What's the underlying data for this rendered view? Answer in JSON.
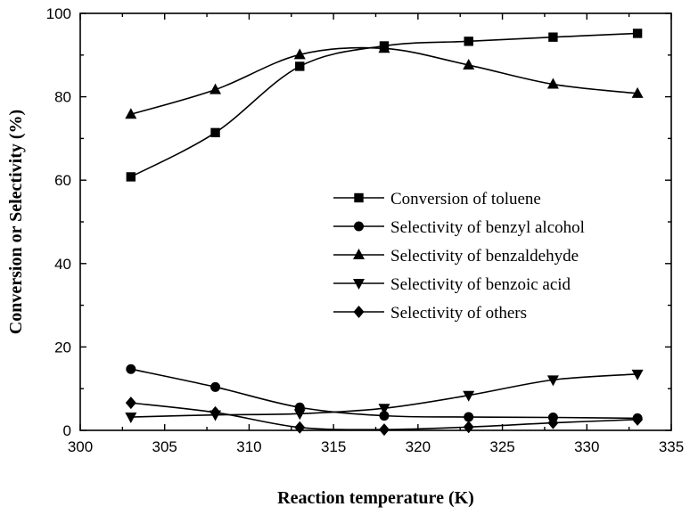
{
  "chart_data": {
    "type": "line",
    "title": "",
    "xlabel": "Reaction temperature (K)",
    "ylabel": "Conversion or Selectivity (%)",
    "xlim": [
      300,
      335
    ],
    "ylim": [
      0,
      100
    ],
    "xticks": [
      300,
      305,
      310,
      315,
      320,
      325,
      330,
      335
    ],
    "yticks": [
      0,
      20,
      40,
      60,
      80,
      100
    ],
    "grid": false,
    "legend_position": "center-right",
    "x": [
      303,
      308,
      313,
      318,
      323,
      328,
      333
    ],
    "series": [
      {
        "name": "Conversion of toluene",
        "marker": "square",
        "values": [
          60.8,
          71.4,
          87.3,
          92.2,
          93.3,
          94.3,
          95.2
        ]
      },
      {
        "name": "Selectivity of benzyl alcohol",
        "marker": "circle",
        "values": [
          14.7,
          10.4,
          5.5,
          3.5,
          3.2,
          3.1,
          2.9
        ]
      },
      {
        "name": "Selectivity of benzaldehyde",
        "marker": "triangle-up",
        "values": [
          75.8,
          81.7,
          90.1,
          91.6,
          87.6,
          83.0,
          80.8
        ]
      },
      {
        "name": "Selectivity of benzoic acid",
        "marker": "triangle-down",
        "values": [
          3.2,
          3.7,
          4.0,
          5.3,
          8.4,
          12.1,
          13.5
        ]
      },
      {
        "name": "Selectivity of others",
        "marker": "diamond",
        "values": [
          6.6,
          4.3,
          0.7,
          0.2,
          0.8,
          1.8,
          2.6
        ]
      }
    ]
  }
}
